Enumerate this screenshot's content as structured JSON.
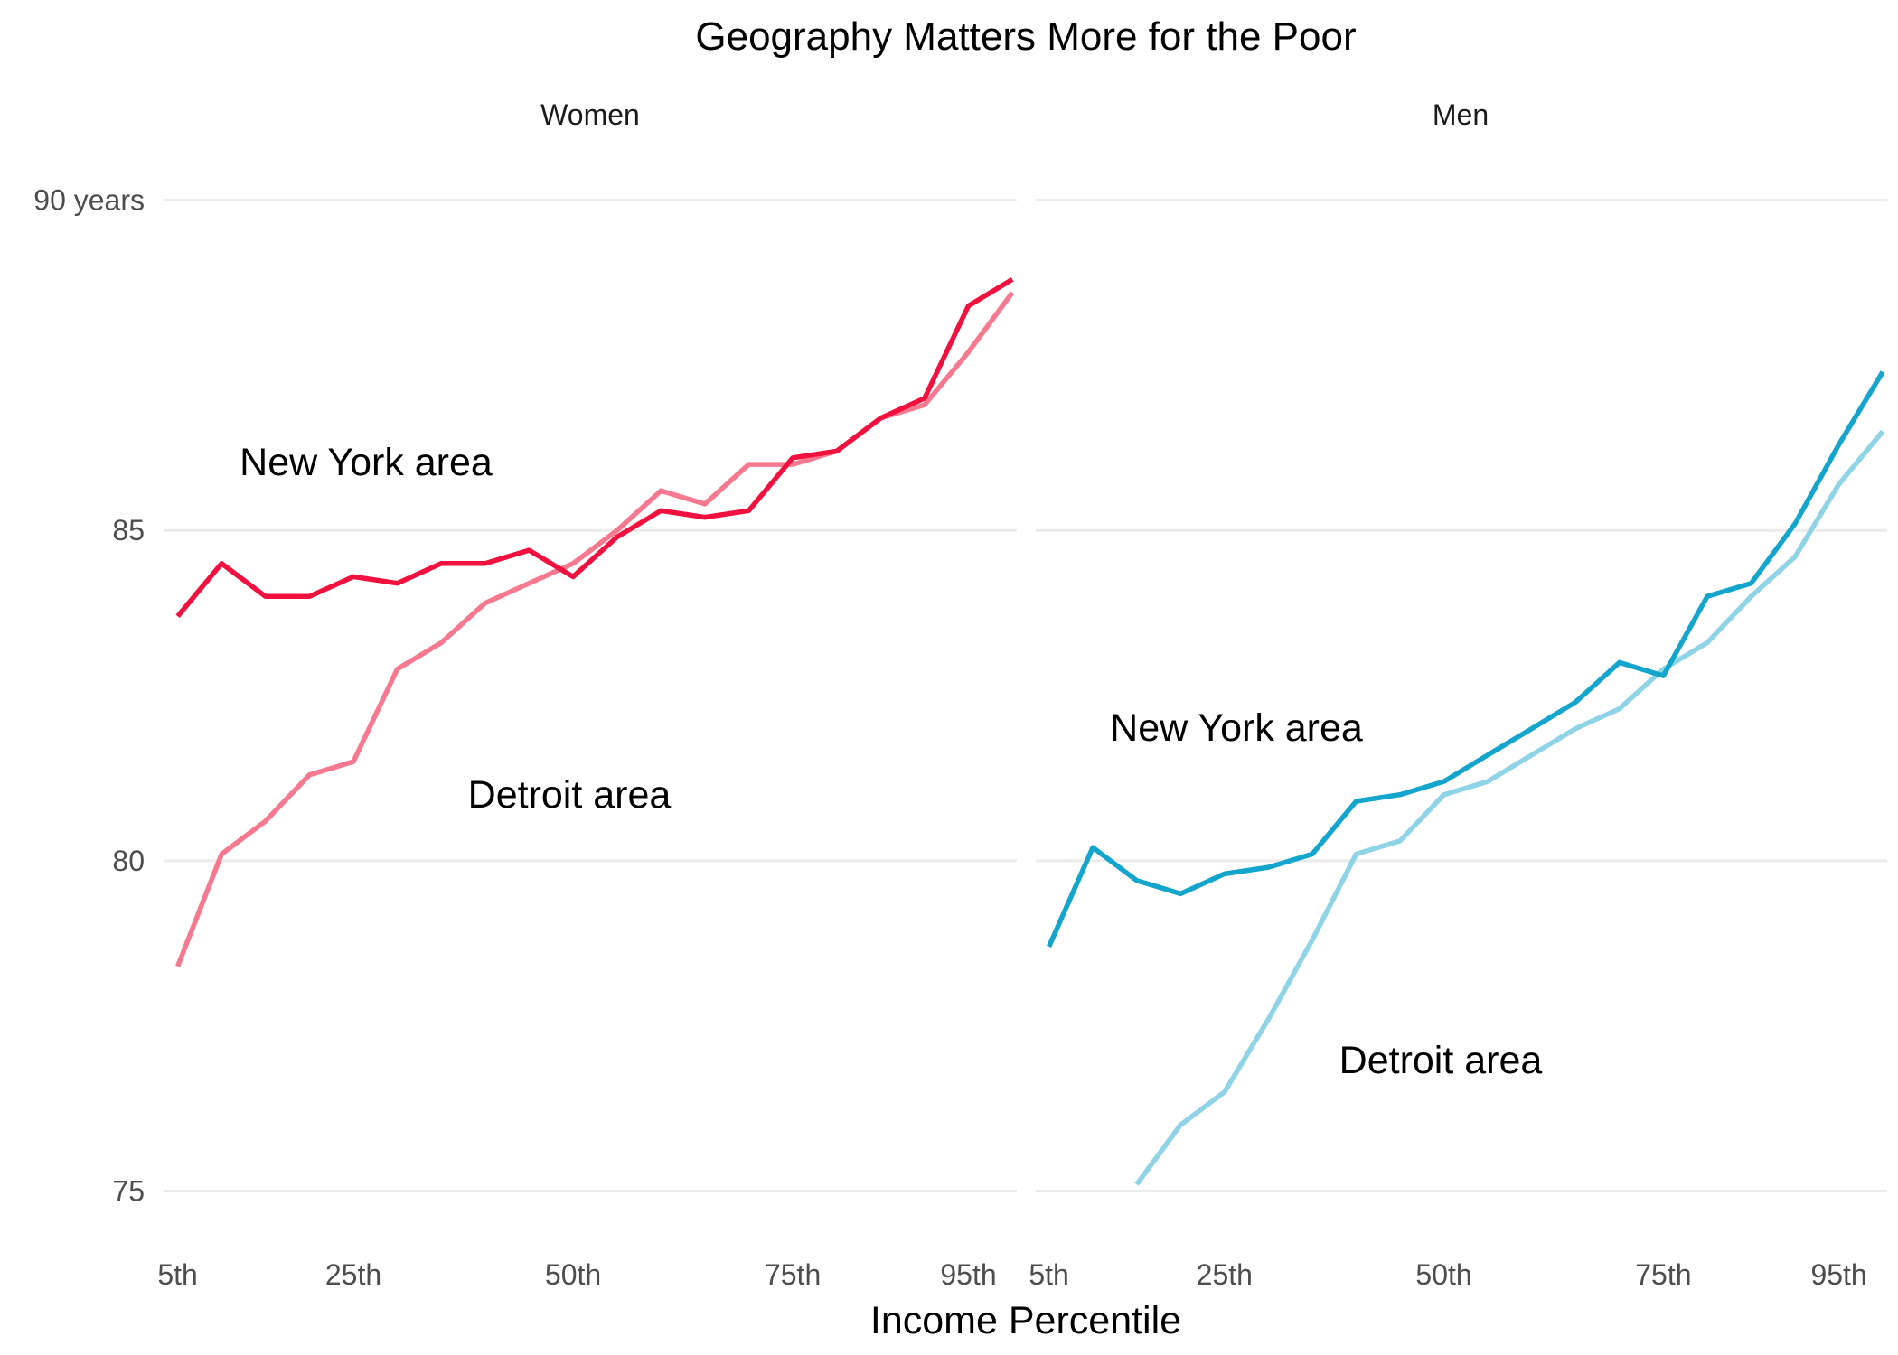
{
  "chart_data": {
    "type": "line",
    "title": "Geography Matters More for the Poor",
    "xlabel": "Income Percentile",
    "ylabel": "",
    "ylim": [
      74.5,
      90.5
    ],
    "yticks": [
      {
        "value": 75,
        "label": "75"
      },
      {
        "value": 80,
        "label": "80"
      },
      {
        "value": 85,
        "label": "85"
      },
      {
        "value": 90,
        "label": "90 years"
      }
    ],
    "xlim": [
      3.5,
      100.5
    ],
    "xticks": [
      {
        "value": 5,
        "label": "5th"
      },
      {
        "value": 25,
        "label": "25th"
      },
      {
        "value": 50,
        "label": "50th"
      },
      {
        "value": 75,
        "label": "75th"
      },
      {
        "value": 95,
        "label": "95th"
      }
    ],
    "grid": true,
    "legend": "none",
    "x": [
      5,
      10,
      15,
      20,
      25,
      30,
      35,
      40,
      45,
      50,
      55,
      60,
      65,
      70,
      75,
      80,
      85,
      90,
      95,
      100
    ],
    "panels": [
      {
        "name": "Women",
        "annotations": [
          {
            "text": "New York area",
            "x": 25,
            "y": 86.0
          },
          {
            "text": "Detroit area",
            "x": 50,
            "y": 81.0
          }
        ],
        "series": [
          {
            "color": "#f7798f",
            "values": [
              78.4,
              80.1,
              80.6,
              81.3,
              81.5,
              82.9,
              83.3,
              83.9,
              84.2,
              84.5,
              85.0,
              85.6,
              85.4,
              86.0,
              86.0,
              86.2,
              86.7,
              86.9,
              87.7,
              88.6
            ]
          },
          {
            "color": "#f0113f",
            "values": [
              83.7,
              84.5,
              84.0,
              84.0,
              84.3,
              84.2,
              84.5,
              84.5,
              84.7,
              84.3,
              84.9,
              85.3,
              85.2,
              85.3,
              86.1,
              86.2,
              86.7,
              87.0,
              88.4,
              88.8
            ]
          }
        ]
      },
      {
        "name": "Men",
        "annotations": [
          {
            "text": "New York area",
            "x": 25,
            "y": 82.0
          },
          {
            "text": "Detroit area",
            "x": 50,
            "y": 77.0
          }
        ],
        "series": [
          {
            "color": "#8fd3e7",
            "values": [
              null,
              null,
              75.1,
              76.0,
              76.5,
              77.6,
              78.8,
              80.1,
              80.3,
              81.0,
              81.2,
              81.6,
              82.0,
              82.3,
              82.9,
              83.3,
              84.0,
              84.6,
              85.7,
              86.5
            ]
          },
          {
            "color": "#14a5cc",
            "values": [
              78.7,
              80.2,
              79.7,
              79.5,
              79.8,
              79.9,
              80.1,
              80.9,
              81.0,
              81.2,
              81.6,
              82.0,
              82.4,
              83.0,
              82.8,
              84.0,
              84.2,
              85.1,
              86.3,
              87.4
            ]
          }
        ]
      }
    ]
  }
}
